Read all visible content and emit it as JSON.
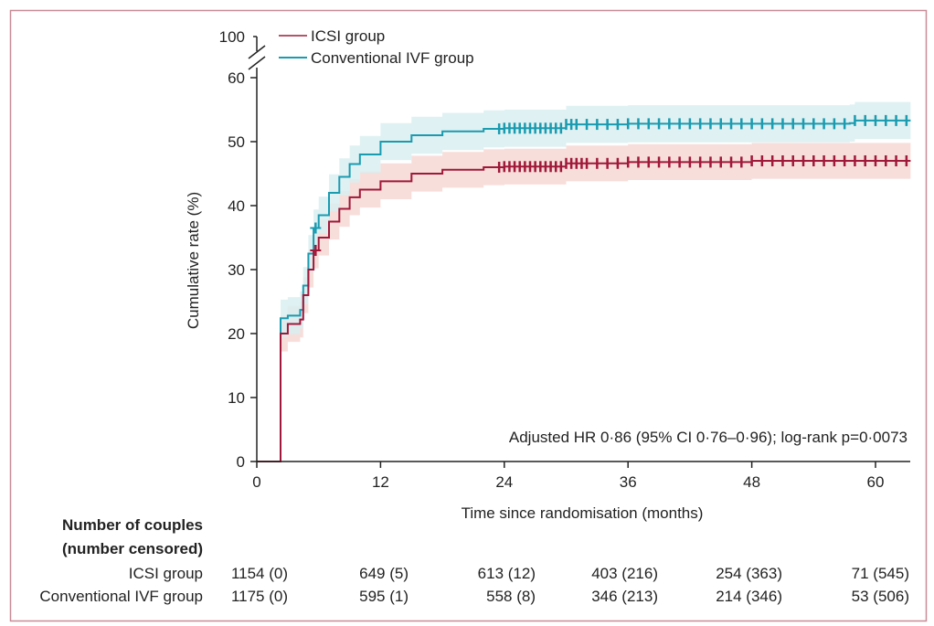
{
  "chart_data": {
    "type": "line",
    "subtype": "kaplan-meier cumulative incidence",
    "xlabel": "Time since randomisation (months)",
    "ylabel": "Cumulative rate (%)",
    "xlim": [
      0,
      63.5
    ],
    "ylim": [
      0,
      60
    ],
    "y_axis_break": {
      "from": 60,
      "to": 100
    },
    "xticks": [
      0,
      12,
      24,
      36,
      48,
      60
    ],
    "yticks": [
      0,
      10,
      20,
      30,
      40,
      50,
      60,
      100
    ],
    "grid": false,
    "legend_position": "top-left",
    "annotation": "Adjusted HR 0·86 (95% CI 0·76–0·96); log-rank p=0·0073",
    "series": [
      {
        "name": "ICSI group",
        "color": "#a0183a",
        "ci_color": "#f6d8d3",
        "points": [
          [
            0,
            0
          ],
          [
            2.3,
            0
          ],
          [
            2.3,
            20
          ],
          [
            3,
            21.5
          ],
          [
            4.2,
            22.2
          ],
          [
            4.5,
            26
          ],
          [
            5,
            30
          ],
          [
            5.5,
            33
          ],
          [
            6,
            35
          ],
          [
            7,
            37.5
          ],
          [
            8,
            39.5
          ],
          [
            9,
            41.3
          ],
          [
            10,
            42.5
          ],
          [
            12,
            43.8
          ],
          [
            15,
            45
          ],
          [
            18,
            45.6
          ],
          [
            22,
            46
          ],
          [
            24,
            46.1
          ],
          [
            30,
            46.6
          ],
          [
            36,
            46.8
          ],
          [
            48,
            47
          ],
          [
            63.4,
            47
          ]
        ],
        "ci_halfwidth": 2.8,
        "censor_marks": [
          5.7,
          23.5,
          24,
          24.5,
          25,
          25.5,
          26,
          26.5,
          27,
          27.5,
          28,
          28.5,
          29,
          29.5,
          30,
          30.5,
          31,
          31.5,
          32,
          33,
          34,
          35,
          36,
          37,
          38,
          39,
          40,
          41,
          42,
          43,
          44,
          45,
          46,
          47,
          48,
          49,
          50,
          51,
          52,
          53,
          54,
          55,
          56,
          57,
          58,
          59,
          60,
          61,
          62,
          63
        ]
      },
      {
        "name": "Conventional IVF group",
        "color": "#1a9bb0",
        "ci_color": "#d9eff0",
        "points": [
          [
            0,
            0
          ],
          [
            2.3,
            0
          ],
          [
            2.3,
            22.4
          ],
          [
            3,
            22.8
          ],
          [
            4.2,
            23.7
          ],
          [
            4.5,
            27.5
          ],
          [
            5,
            32.5
          ],
          [
            5.5,
            36.5
          ],
          [
            6,
            38.5
          ],
          [
            7,
            42
          ],
          [
            8,
            44.5
          ],
          [
            9,
            46.5
          ],
          [
            10,
            48
          ],
          [
            12,
            50
          ],
          [
            15,
            51
          ],
          [
            18,
            51.6
          ],
          [
            22,
            52
          ],
          [
            24,
            52.1
          ],
          [
            30,
            52.7
          ],
          [
            36,
            52.8
          ],
          [
            48,
            52.8
          ],
          [
            57.5,
            52.9
          ],
          [
            58,
            53.3
          ],
          [
            63.4,
            53.3
          ]
        ],
        "ci_halfwidth": 2.9,
        "censor_marks": [
          5.7,
          23.5,
          24,
          24.5,
          25,
          25.5,
          26,
          26.5,
          27,
          27.5,
          28,
          28.5,
          29,
          29.5,
          30,
          30.5,
          31,
          32,
          33,
          34,
          35,
          36,
          37,
          38,
          39,
          40,
          41,
          42,
          43,
          44,
          45,
          46,
          47,
          48,
          49,
          50,
          51,
          52,
          53,
          54,
          55,
          56,
          57,
          58,
          59,
          60,
          61,
          62,
          63
        ]
      }
    ]
  },
  "risk_table": {
    "title_line1": "Number of couples",
    "title_line2": "(number censored)",
    "rows": [
      {
        "label": "ICSI group",
        "values": [
          "1154 (0)",
          "649 (5)",
          "613 (12)",
          "403 (216)",
          "254 (363)",
          "71 (545)"
        ]
      },
      {
        "label": "Conventional IVF group",
        "values": [
          "1175 (0)",
          "595 (1)",
          "558 (8)",
          "346 (213)",
          "214 (346)",
          "53 (506)"
        ]
      }
    ]
  },
  "frame_color": "#c98a96"
}
